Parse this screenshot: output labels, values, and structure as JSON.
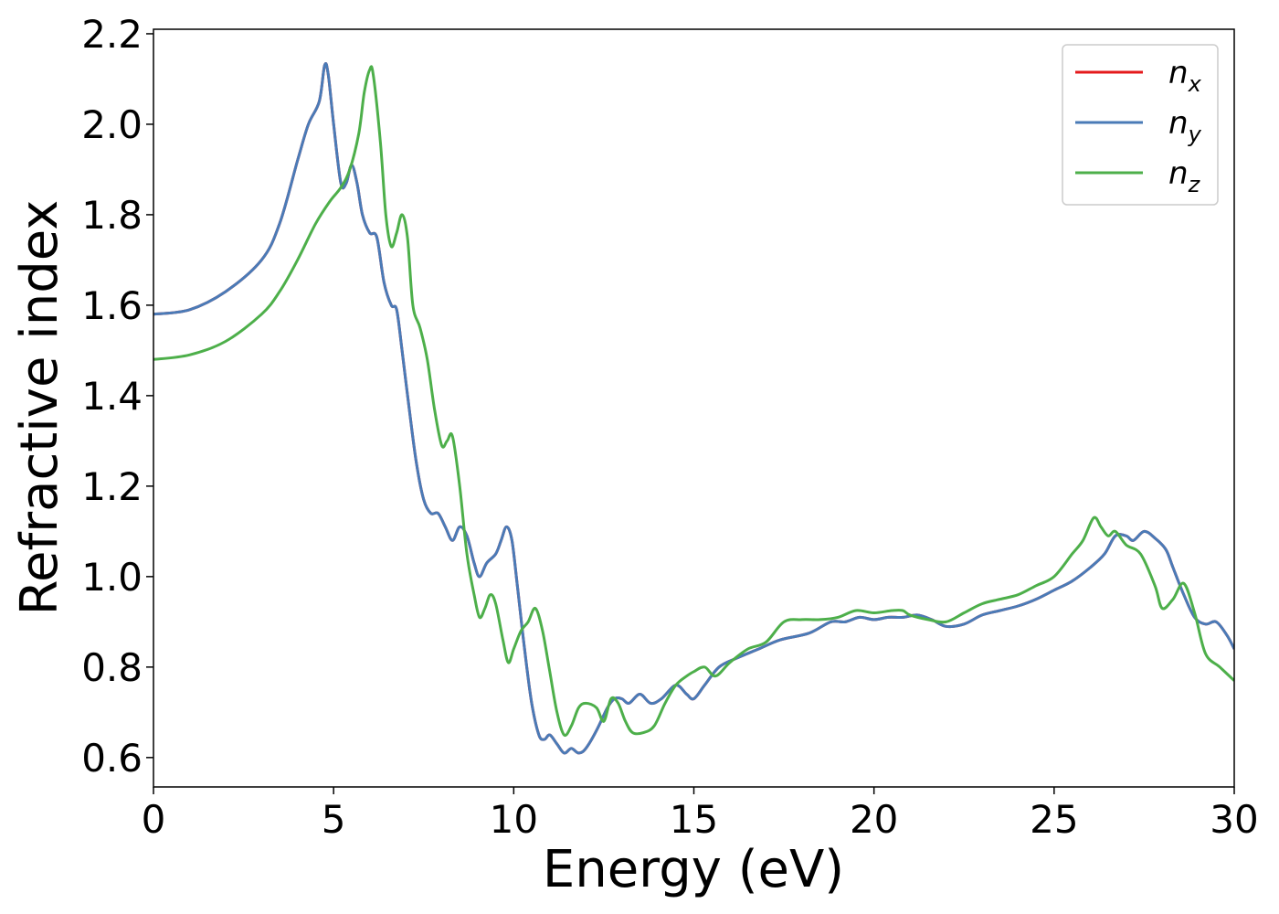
{
  "chart_data": {
    "type": "line",
    "title": "",
    "xlabel": "Energy (eV)",
    "ylabel": "Refractive index",
    "xlim": [
      0,
      30
    ],
    "ylim": [
      0.535,
      2.21
    ],
    "xticks": [
      0,
      5,
      10,
      15,
      20,
      25,
      30
    ],
    "xtick_labels": [
      "0",
      "5",
      "10",
      "15",
      "20",
      "25",
      "30"
    ],
    "yticks": [
      0.6,
      0.8,
      1.0,
      1.2,
      1.4,
      1.6,
      1.8,
      2.0,
      2.2
    ],
    "ytick_labels": [
      "0.6",
      "0.8",
      "1.0",
      "1.2",
      "1.4",
      "1.6",
      "1.8",
      "2.0",
      "2.2"
    ],
    "grid": false,
    "legend_position": "top-right",
    "series": [
      {
        "name": "n",
        "subscript": "x",
        "color": "#e41a1c",
        "points": [
          [
            0,
            1.58
          ],
          [
            1,
            1.59
          ],
          [
            2,
            1.63
          ],
          [
            3,
            1.7
          ],
          [
            3.5,
            1.78
          ],
          [
            4,
            1.92
          ],
          [
            4.3,
            2.0
          ],
          [
            4.6,
            2.05
          ],
          [
            4.75,
            2.13
          ],
          [
            4.85,
            2.11
          ],
          [
            5.0,
            2.0
          ],
          [
            5.2,
            1.87
          ],
          [
            5.35,
            1.87
          ],
          [
            5.5,
            1.91
          ],
          [
            5.65,
            1.87
          ],
          [
            5.8,
            1.8
          ],
          [
            6.0,
            1.76
          ],
          [
            6.2,
            1.75
          ],
          [
            6.4,
            1.65
          ],
          [
            6.6,
            1.6
          ],
          [
            6.75,
            1.59
          ],
          [
            6.9,
            1.5
          ],
          [
            7.1,
            1.37
          ],
          [
            7.3,
            1.25
          ],
          [
            7.5,
            1.17
          ],
          [
            7.7,
            1.14
          ],
          [
            7.9,
            1.14
          ],
          [
            8.1,
            1.11
          ],
          [
            8.3,
            1.08
          ],
          [
            8.5,
            1.11
          ],
          [
            8.7,
            1.09
          ],
          [
            8.9,
            1.03
          ],
          [
            9.05,
            1.0
          ],
          [
            9.25,
            1.03
          ],
          [
            9.5,
            1.05
          ],
          [
            9.65,
            1.08
          ],
          [
            9.8,
            1.11
          ],
          [
            9.95,
            1.08
          ],
          [
            10.1,
            0.98
          ],
          [
            10.3,
            0.84
          ],
          [
            10.5,
            0.72
          ],
          [
            10.7,
            0.65
          ],
          [
            10.85,
            0.64
          ],
          [
            11.0,
            0.65
          ],
          [
            11.2,
            0.63
          ],
          [
            11.4,
            0.61
          ],
          [
            11.6,
            0.62
          ],
          [
            11.8,
            0.61
          ],
          [
            12.0,
            0.62
          ],
          [
            12.3,
            0.66
          ],
          [
            12.6,
            0.71
          ],
          [
            12.8,
            0.73
          ],
          [
            13.0,
            0.73
          ],
          [
            13.2,
            0.72
          ],
          [
            13.5,
            0.74
          ],
          [
            13.8,
            0.72
          ],
          [
            14.1,
            0.73
          ],
          [
            14.5,
            0.76
          ],
          [
            14.8,
            0.74
          ],
          [
            15.0,
            0.73
          ],
          [
            15.3,
            0.76
          ],
          [
            15.7,
            0.8
          ],
          [
            16.2,
            0.82
          ],
          [
            16.8,
            0.84
          ],
          [
            17.4,
            0.86
          ],
          [
            18.2,
            0.875
          ],
          [
            18.8,
            0.9
          ],
          [
            19.2,
            0.9
          ],
          [
            19.6,
            0.91
          ],
          [
            20.0,
            0.905
          ],
          [
            20.4,
            0.91
          ],
          [
            20.8,
            0.91
          ],
          [
            21.2,
            0.915
          ],
          [
            21.6,
            0.905
          ],
          [
            22.0,
            0.89
          ],
          [
            22.5,
            0.895
          ],
          [
            23.0,
            0.915
          ],
          [
            23.5,
            0.925
          ],
          [
            24.0,
            0.935
          ],
          [
            24.5,
            0.95
          ],
          [
            25.0,
            0.97
          ],
          [
            25.5,
            0.99
          ],
          [
            26.0,
            1.02
          ],
          [
            26.4,
            1.05
          ],
          [
            26.7,
            1.09
          ],
          [
            27.0,
            1.09
          ],
          [
            27.2,
            1.08
          ],
          [
            27.5,
            1.1
          ],
          [
            27.8,
            1.085
          ],
          [
            28.1,
            1.06
          ],
          [
            28.3,
            1.02
          ],
          [
            28.6,
            0.96
          ],
          [
            28.9,
            0.91
          ],
          [
            29.2,
            0.895
          ],
          [
            29.5,
            0.9
          ],
          [
            29.8,
            0.87
          ],
          [
            30.0,
            0.84
          ]
        ]
      },
      {
        "name": "n",
        "subscript": "y",
        "color": "#4a7bb7",
        "points": [
          [
            0,
            1.58
          ],
          [
            1,
            1.59
          ],
          [
            2,
            1.63
          ],
          [
            3,
            1.7
          ],
          [
            3.5,
            1.78
          ],
          [
            4,
            1.92
          ],
          [
            4.3,
            2.0
          ],
          [
            4.6,
            2.05
          ],
          [
            4.75,
            2.13
          ],
          [
            4.85,
            2.11
          ],
          [
            5.0,
            2.0
          ],
          [
            5.2,
            1.87
          ],
          [
            5.35,
            1.87
          ],
          [
            5.5,
            1.91
          ],
          [
            5.65,
            1.87
          ],
          [
            5.8,
            1.8
          ],
          [
            6.0,
            1.76
          ],
          [
            6.2,
            1.75
          ],
          [
            6.4,
            1.65
          ],
          [
            6.6,
            1.6
          ],
          [
            6.75,
            1.59
          ],
          [
            6.9,
            1.5
          ],
          [
            7.1,
            1.37
          ],
          [
            7.3,
            1.25
          ],
          [
            7.5,
            1.17
          ],
          [
            7.7,
            1.14
          ],
          [
            7.9,
            1.14
          ],
          [
            8.1,
            1.11
          ],
          [
            8.3,
            1.08
          ],
          [
            8.5,
            1.11
          ],
          [
            8.7,
            1.09
          ],
          [
            8.9,
            1.03
          ],
          [
            9.05,
            1.0
          ],
          [
            9.25,
            1.03
          ],
          [
            9.5,
            1.05
          ],
          [
            9.65,
            1.08
          ],
          [
            9.8,
            1.11
          ],
          [
            9.95,
            1.08
          ],
          [
            10.1,
            0.98
          ],
          [
            10.3,
            0.84
          ],
          [
            10.5,
            0.72
          ],
          [
            10.7,
            0.65
          ],
          [
            10.85,
            0.64
          ],
          [
            11.0,
            0.65
          ],
          [
            11.2,
            0.63
          ],
          [
            11.4,
            0.61
          ],
          [
            11.6,
            0.62
          ],
          [
            11.8,
            0.61
          ],
          [
            12.0,
            0.62
          ],
          [
            12.3,
            0.66
          ],
          [
            12.6,
            0.71
          ],
          [
            12.8,
            0.73
          ],
          [
            13.0,
            0.73
          ],
          [
            13.2,
            0.72
          ],
          [
            13.5,
            0.74
          ],
          [
            13.8,
            0.72
          ],
          [
            14.1,
            0.73
          ],
          [
            14.5,
            0.76
          ],
          [
            14.8,
            0.74
          ],
          [
            15.0,
            0.73
          ],
          [
            15.3,
            0.76
          ],
          [
            15.7,
            0.8
          ],
          [
            16.2,
            0.82
          ],
          [
            16.8,
            0.84
          ],
          [
            17.4,
            0.86
          ],
          [
            18.2,
            0.875
          ],
          [
            18.8,
            0.9
          ],
          [
            19.2,
            0.9
          ],
          [
            19.6,
            0.91
          ],
          [
            20.0,
            0.905
          ],
          [
            20.4,
            0.91
          ],
          [
            20.8,
            0.91
          ],
          [
            21.2,
            0.915
          ],
          [
            21.6,
            0.905
          ],
          [
            22.0,
            0.89
          ],
          [
            22.5,
            0.895
          ],
          [
            23.0,
            0.915
          ],
          [
            23.5,
            0.925
          ],
          [
            24.0,
            0.935
          ],
          [
            24.5,
            0.95
          ],
          [
            25.0,
            0.97
          ],
          [
            25.5,
            0.99
          ],
          [
            26.0,
            1.02
          ],
          [
            26.4,
            1.05
          ],
          [
            26.7,
            1.09
          ],
          [
            27.0,
            1.09
          ],
          [
            27.2,
            1.08
          ],
          [
            27.5,
            1.1
          ],
          [
            27.8,
            1.085
          ],
          [
            28.1,
            1.06
          ],
          [
            28.3,
            1.02
          ],
          [
            28.6,
            0.96
          ],
          [
            28.9,
            0.91
          ],
          [
            29.2,
            0.895
          ],
          [
            29.5,
            0.9
          ],
          [
            29.8,
            0.87
          ],
          [
            30.0,
            0.84
          ]
        ]
      },
      {
        "name": "n",
        "subscript": "z",
        "color": "#4daf4a",
        "points": [
          [
            0,
            1.48
          ],
          [
            1,
            1.49
          ],
          [
            2,
            1.52
          ],
          [
            3,
            1.58
          ],
          [
            3.5,
            1.63
          ],
          [
            4,
            1.7
          ],
          [
            4.5,
            1.78
          ],
          [
            4.9,
            1.83
          ],
          [
            5.2,
            1.86
          ],
          [
            5.45,
            1.9
          ],
          [
            5.7,
            1.98
          ],
          [
            5.85,
            2.07
          ],
          [
            6.0,
            2.12
          ],
          [
            6.1,
            2.11
          ],
          [
            6.3,
            1.96
          ],
          [
            6.45,
            1.8
          ],
          [
            6.6,
            1.73
          ],
          [
            6.75,
            1.76
          ],
          [
            6.9,
            1.8
          ],
          [
            7.05,
            1.75
          ],
          [
            7.2,
            1.6
          ],
          [
            7.4,
            1.55
          ],
          [
            7.6,
            1.48
          ],
          [
            7.8,
            1.37
          ],
          [
            8.0,
            1.29
          ],
          [
            8.15,
            1.3
          ],
          [
            8.3,
            1.31
          ],
          [
            8.5,
            1.2
          ],
          [
            8.7,
            1.05
          ],
          [
            8.9,
            0.96
          ],
          [
            9.05,
            0.91
          ],
          [
            9.2,
            0.93
          ],
          [
            9.35,
            0.96
          ],
          [
            9.5,
            0.94
          ],
          [
            9.7,
            0.86
          ],
          [
            9.85,
            0.81
          ],
          [
            10.0,
            0.84
          ],
          [
            10.2,
            0.88
          ],
          [
            10.4,
            0.9
          ],
          [
            10.6,
            0.93
          ],
          [
            10.8,
            0.88
          ],
          [
            11.0,
            0.79
          ],
          [
            11.2,
            0.7
          ],
          [
            11.4,
            0.65
          ],
          [
            11.6,
            0.67
          ],
          [
            11.8,
            0.71
          ],
          [
            12.0,
            0.72
          ],
          [
            12.3,
            0.71
          ],
          [
            12.5,
            0.68
          ],
          [
            12.7,
            0.73
          ],
          [
            12.9,
            0.72
          ],
          [
            13.1,
            0.68
          ],
          [
            13.3,
            0.655
          ],
          [
            13.6,
            0.655
          ],
          [
            13.9,
            0.67
          ],
          [
            14.2,
            0.72
          ],
          [
            14.5,
            0.76
          ],
          [
            14.8,
            0.78
          ],
          [
            15.0,
            0.79
          ],
          [
            15.3,
            0.8
          ],
          [
            15.6,
            0.78
          ],
          [
            16.0,
            0.81
          ],
          [
            16.5,
            0.84
          ],
          [
            17.0,
            0.855
          ],
          [
            17.5,
            0.9
          ],
          [
            18.0,
            0.905
          ],
          [
            18.5,
            0.905
          ],
          [
            19.0,
            0.91
          ],
          [
            19.5,
            0.925
          ],
          [
            20.0,
            0.92
          ],
          [
            20.5,
            0.925
          ],
          [
            20.8,
            0.925
          ],
          [
            21.0,
            0.915
          ],
          [
            21.5,
            0.905
          ],
          [
            22.0,
            0.9
          ],
          [
            22.5,
            0.92
          ],
          [
            23.0,
            0.94
          ],
          [
            23.5,
            0.95
          ],
          [
            24.0,
            0.96
          ],
          [
            24.5,
            0.98
          ],
          [
            25.0,
            1.0
          ],
          [
            25.5,
            1.05
          ],
          [
            25.8,
            1.08
          ],
          [
            26.1,
            1.13
          ],
          [
            26.3,
            1.11
          ],
          [
            26.5,
            1.09
          ],
          [
            26.7,
            1.1
          ],
          [
            27.0,
            1.07
          ],
          [
            27.4,
            1.05
          ],
          [
            27.8,
            0.98
          ],
          [
            28.0,
            0.93
          ],
          [
            28.3,
            0.95
          ],
          [
            28.6,
            0.985
          ],
          [
            28.9,
            0.92
          ],
          [
            29.2,
            0.83
          ],
          [
            29.6,
            0.8
          ],
          [
            30.0,
            0.77
          ]
        ]
      }
    ]
  }
}
